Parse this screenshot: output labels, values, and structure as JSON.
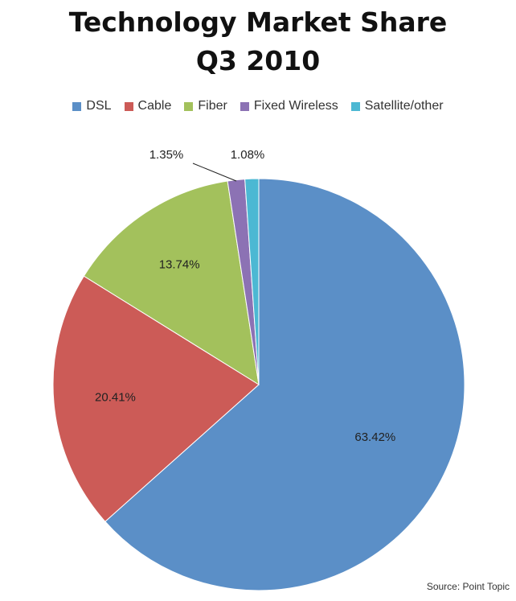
{
  "chart_data": {
    "type": "pie",
    "title_lines": [
      "Technology Market Share",
      "Q3 2010"
    ],
    "slices": [
      {
        "name": "DSL",
        "value": 63.42,
        "label": "63.42%",
        "color": "#5b8fc7"
      },
      {
        "name": "Cable",
        "value": 20.41,
        "label": "20.41%",
        "color": "#cc5b57"
      },
      {
        "name": "Fiber",
        "value": 13.74,
        "label": "13.74%",
        "color": "#a3c15c"
      },
      {
        "name": "Fixed Wireless",
        "value": 1.35,
        "label": "1.35%",
        "color": "#8c72b4"
      },
      {
        "name": "Satellite/other",
        "value": 1.08,
        "label": "1.08%",
        "color": "#4cb8d3"
      }
    ],
    "legend_position": "top",
    "source": "Source: Point Topic"
  }
}
